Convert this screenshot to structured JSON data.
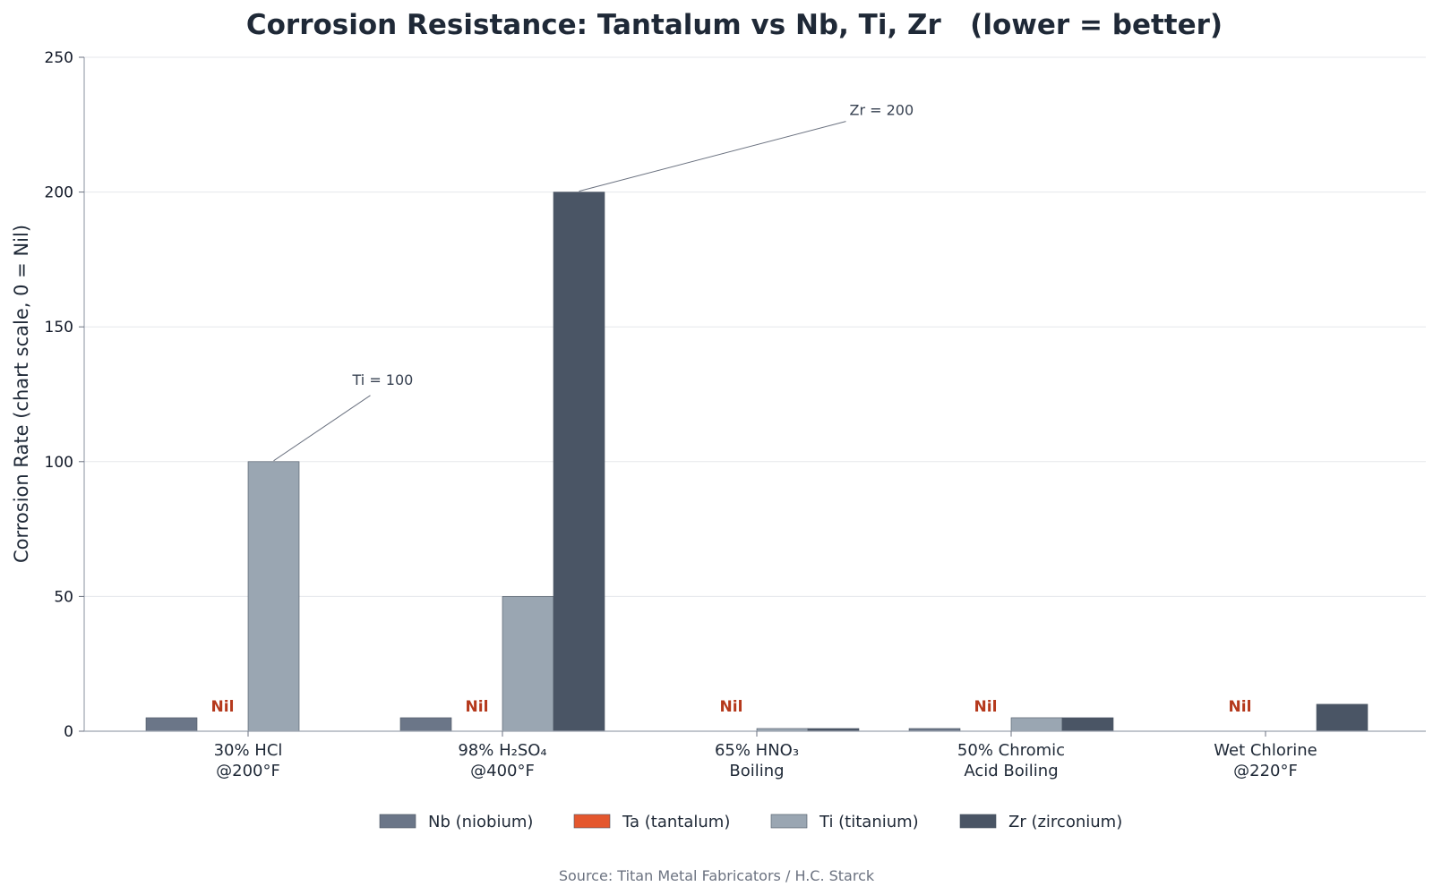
{
  "chart_data": {
    "type": "bar",
    "title": "Corrosion Resistance: Tantalum vs Nb, Ti, Zr   (lower = better)",
    "ylabel": "Corrosion Rate (chart scale, 0 = Nil)",
    "xlabel": "",
    "ylim": [
      0,
      250
    ],
    "yticks": [
      0,
      50,
      100,
      150,
      200,
      250
    ],
    "grid": "horizontal",
    "legend_position": "bottom",
    "categories": [
      [
        "30% HCl",
        "@200°F"
      ],
      [
        "98% H₂SO₄",
        "@400°F"
      ],
      [
        "65% HNO₃",
        "Boiling"
      ],
      [
        "50% Chromic",
        "Acid Boiling"
      ],
      [
        "Wet Chlorine",
        "@220°F"
      ]
    ],
    "series": [
      {
        "name": "Nb (niobium)",
        "color": "#6b7688",
        "values": [
          5,
          5,
          0,
          1,
          0
        ]
      },
      {
        "name": "Ta (tantalum)",
        "color": "#e4572e",
        "values": [
          0,
          0,
          0,
          0,
          0
        ]
      },
      {
        "name": "Ti (titanium)",
        "color": "#9aa6b2",
        "values": [
          100,
          50,
          1,
          5,
          0
        ]
      },
      {
        "name": "Zr (zirconium)",
        "color": "#4a5565",
        "values": [
          0,
          200,
          1,
          5,
          10
        ]
      }
    ],
    "nil_label": "Nil",
    "annotations": [
      {
        "text": "Ti = 100",
        "category_index": 0,
        "series_index": 2,
        "value": 100
      },
      {
        "text": "Zr = 200",
        "category_index": 1,
        "series_index": 3,
        "value": 200
      }
    ],
    "source": "Source: Titan Metal Fabricators / H.C. Starck"
  }
}
